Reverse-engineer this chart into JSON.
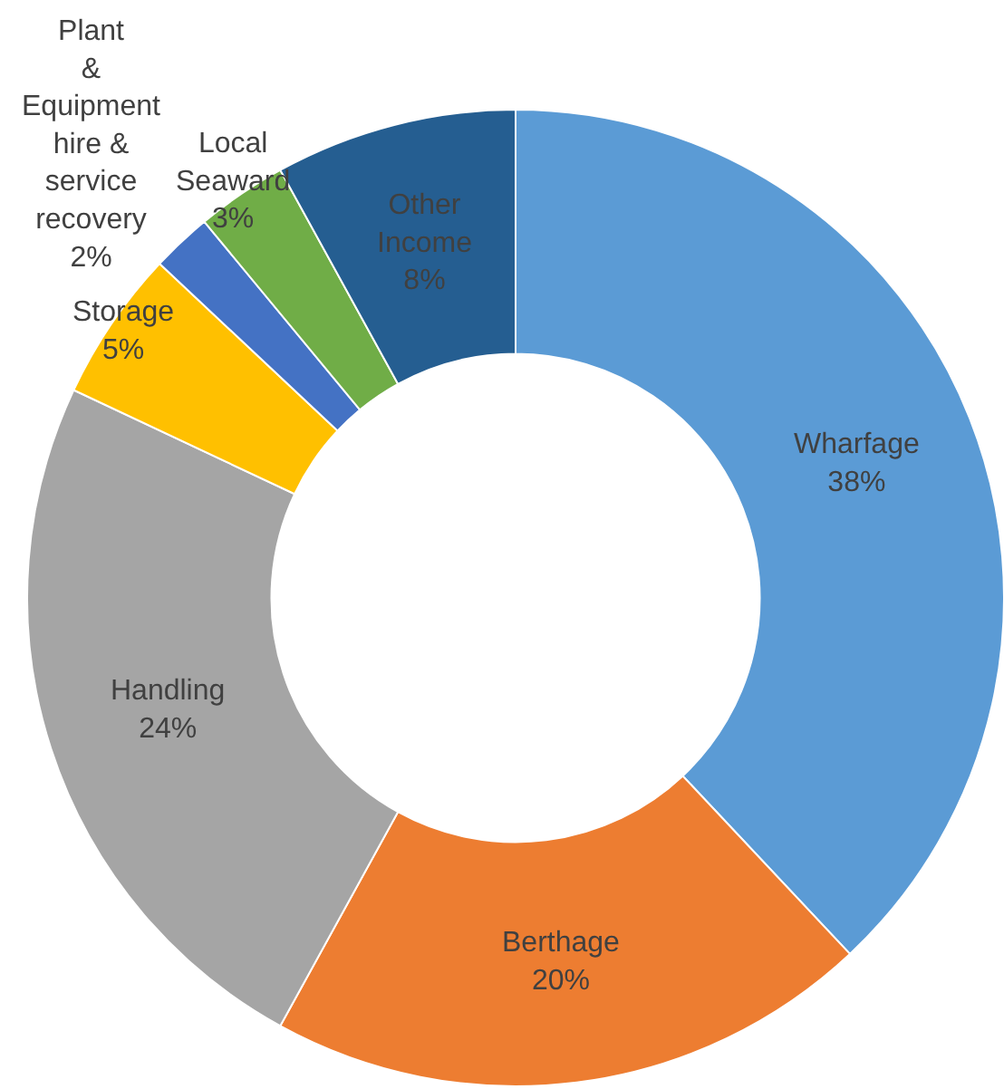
{
  "chart_data": {
    "type": "donut",
    "categories": [
      "Wharfage",
      "Berthage",
      "Handling",
      "Storage",
      "Plant & Equipment hire & service recovery",
      "Local Seaward",
      "Other Income"
    ],
    "values": [
      38,
      20,
      24,
      5,
      2,
      3,
      8
    ],
    "value_labels": [
      "38%",
      "20%",
      "24%",
      "5%",
      "2%",
      "3%",
      "8%"
    ],
    "colors": [
      "#5b9bd5",
      "#ed7d31",
      "#a5a5a5",
      "#ffc000",
      "#4472c4",
      "#70ad47",
      "#255e91"
    ],
    "legend": false
  }
}
